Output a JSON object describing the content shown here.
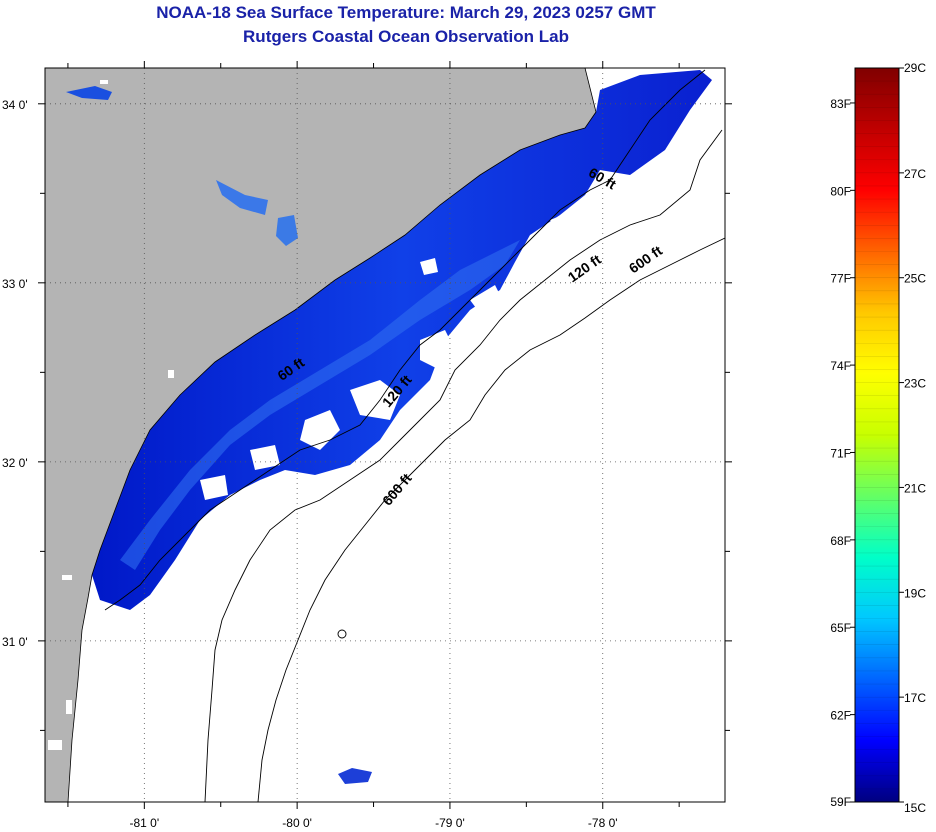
{
  "title": "NOAA-18 Sea Surface Temperature:  March 29, 2023 0257 GMT",
  "subtitle": "Rutgers Coastal Ocean Observation Lab",
  "map": {
    "lon_range": [
      -81.65,
      -77.2
    ],
    "lat_range": [
      30.1,
      34.2
    ],
    "lon_ticks": [
      {
        "value": -81,
        "label": "-81 0'"
      },
      {
        "value": -80,
        "label": "-80 0'"
      },
      {
        "value": -79,
        "label": "-79 0'"
      },
      {
        "value": -78,
        "label": "-78 0'"
      }
    ],
    "lat_ticks": [
      {
        "value": 34,
        "label": "34 0'"
      },
      {
        "value": 33,
        "label": "33 0'"
      },
      {
        "value": 32,
        "label": "32 0'"
      },
      {
        "value": 31,
        "label": "31 0'"
      }
    ],
    "grid": "dotted",
    "land_color": "#b4b4b4",
    "water_color": "#ffffff",
    "isobath_labels": [
      {
        "label": "60 ft",
        "lon": -78.1,
        "lat": 33.6
      },
      {
        "label": "120 ft",
        "lon": -78.2,
        "lat": 33.0
      },
      {
        "label": "600 ft",
        "lon": -77.8,
        "lat": 33.05
      },
      {
        "label": "60 ft",
        "lon": -80.1,
        "lat": 32.45
      },
      {
        "label": "120 ft",
        "lon": -79.4,
        "lat": 32.3
      },
      {
        "label": "600 ft",
        "lon": -79.4,
        "lat": 31.75
      }
    ]
  },
  "colorbar": {
    "colors": [
      "#000080",
      "#0000ff",
      "#0064ff",
      "#00c8ff",
      "#00ffc8",
      "#64ff64",
      "#c8ff00",
      "#ffff00",
      "#ffc800",
      "#ff6400",
      "#ff0000",
      "#c00000",
      "#800000"
    ],
    "celsius": [
      "15C",
      "17C",
      "19C",
      "21C",
      "23C",
      "25C",
      "27C",
      "29C"
    ],
    "fahrenheit": [
      "59F",
      "62F",
      "65F",
      "68F",
      "71F",
      "74F",
      "77F",
      "80F",
      "83F"
    ],
    "range_c": [
      15,
      29
    ]
  }
}
